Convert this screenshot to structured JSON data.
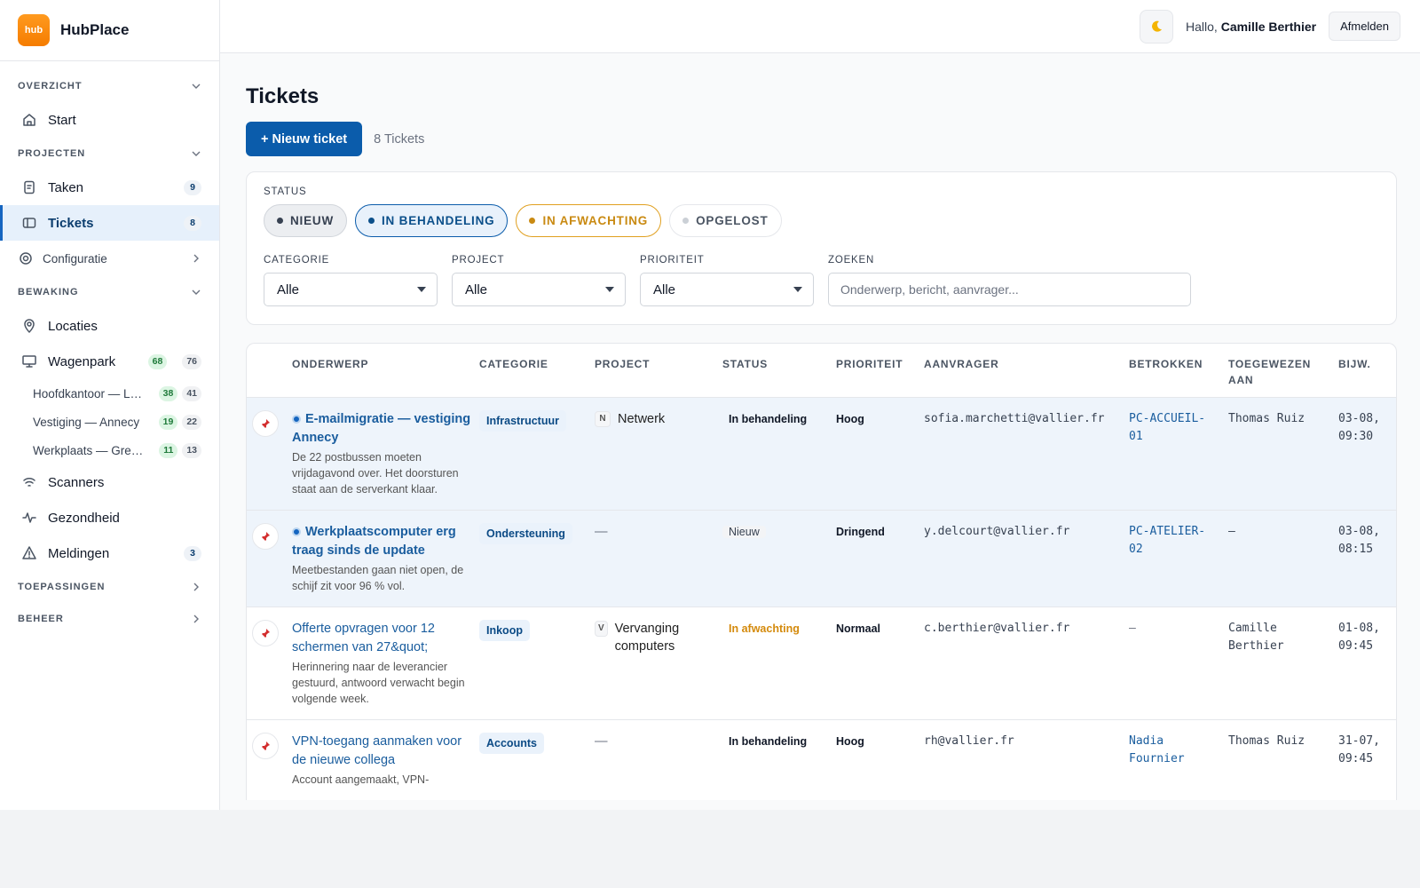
{
  "brand": {
    "logo": "hub",
    "name": "HubPlace"
  },
  "header": {
    "greeting": "Hallo,",
    "user": "Camille Berthier",
    "logout": "Afmelden"
  },
  "sidebar": [
    {
      "section": "OVERZICHT",
      "collapsed": false,
      "items": [
        {
          "label": "Start"
        }
      ]
    },
    {
      "section": "PROJECTEN",
      "collapsed": false,
      "items": [
        {
          "label": "Taken",
          "badges": [
            9
          ]
        },
        {
          "label": "Tickets",
          "badges": [
            8
          ],
          "active": true
        },
        {
          "label": "Configuratie",
          "group": true
        }
      ]
    },
    {
      "section": "BEWAKING",
      "collapsed": false,
      "items": [
        {
          "label": "Locaties"
        },
        {
          "label": "Wagenpark",
          "badges": [
            68,
            76
          ],
          "children": [
            {
              "label": "Hoofdkantoor — L…",
              "badges": [
                38,
                41
              ]
            },
            {
              "label": "Vestiging — Annecy",
              "badges": [
                19,
                22
              ]
            },
            {
              "label": "Werkplaats — Gre…",
              "badges": [
                11,
                13
              ]
            }
          ]
        },
        {
          "label": "Scanners"
        },
        {
          "label": "Gezondheid"
        },
        {
          "label": "Meldingen",
          "badges": [
            3
          ]
        }
      ]
    },
    {
      "section": "TOEPASSINGEN",
      "collapsed": true
    },
    {
      "section": "BEHEER",
      "collapsed": true
    }
  ],
  "page": {
    "title": "Tickets",
    "new_button": "+ Nieuw ticket",
    "count": "8 Tickets"
  },
  "filters": {
    "status_label": "STATUS",
    "statuses": [
      {
        "label": "NIEUW",
        "color": "#374151"
      },
      {
        "label": "IN BEHANDELING",
        "color": "#0b4f8a"
      },
      {
        "label": "IN AFWACHTING",
        "color": "#c98a12"
      },
      {
        "label": "OPGELOST",
        "color": "#4b5563"
      }
    ],
    "selects": [
      {
        "label": "CATEGORIE",
        "value": "Alle"
      },
      {
        "label": "PROJECT",
        "value": "Alle"
      },
      {
        "label": "PRIORITEIT",
        "value": "Alle"
      }
    ],
    "search_label": "ZOEKEN",
    "search_placeholder": "Onderwerp, bericht, aanvrager..."
  },
  "table": {
    "columns": [
      "ONDERWERP",
      "CATEGORIE",
      "PROJECT",
      "STATUS",
      "PRIORITEIT",
      "AANVRAGER",
      "BETROKKEN",
      "TOEGEWEZEN AAN",
      "BIJW."
    ],
    "rows": [
      {
        "unread": true,
        "subject": "E-mailmigratie — vestiging Annecy",
        "description": "De 22 postbussen moeten vrijdagavond over. Het doorsturen staat aan de serverkant klaar.",
        "category": "Infrastructuur",
        "project_initial": "N",
        "project": "Netwerk",
        "status": "In behandeling",
        "priority": "Hoog",
        "requester": "sofia.marchetti@vallier.fr",
        "involved": "PC-ACCUEIL-01",
        "assigned": "Thomas Ruiz",
        "updated": "03-08, 09:30"
      },
      {
        "unread": true,
        "subject": "Werkplaatscomputer erg traag sinds de update",
        "description": "Meetbestanden gaan niet open, de schijf zit voor 96 % vol.",
        "category": "Ondersteuning",
        "project": "—",
        "status": "Nieuw",
        "priority": "Dringend",
        "requester": "y.delcourt@vallier.fr",
        "involved": "PC-ATELIER-02",
        "assigned": "—",
        "updated": "03-08, 08:15"
      },
      {
        "unread": false,
        "subject": "Offerte opvragen voor 12 schermen van 27&quot;",
        "description": "Herinnering naar de leverancier gestuurd, antwoord verwacht begin volgende week.",
        "category": "Inkoop",
        "project_initial": "V",
        "project": "Vervanging computers",
        "status": "In afwachting",
        "priority": "Normaal",
        "requester": "c.berthier@vallier.fr",
        "involved": "—",
        "assigned": "Camille Berthier",
        "updated": "01-08, 09:45"
      },
      {
        "unread": false,
        "subject": "VPN-toegang aanmaken voor de nieuwe collega",
        "description": "Account aangemaakt, VPN-",
        "category": "Accounts",
        "project": "—",
        "status": "In behandeling",
        "priority": "Hoog",
        "requester": "rh@vallier.fr",
        "involved": "Nadia Fournier",
        "assigned": "Thomas Ruiz",
        "updated": "31-07, 09:45"
      }
    ]
  }
}
